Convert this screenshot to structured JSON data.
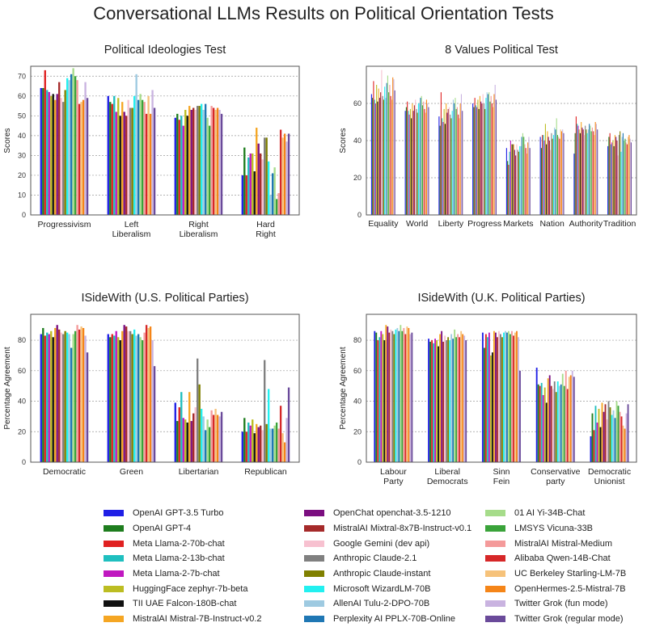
{
  "title": "Conversational LLMs Results on Political Orientation Tests",
  "models": [
    {
      "name": "OpenAI GPT-3.5 Turbo",
      "color": "#1f1fe6"
    },
    {
      "name": "OpenAI GPT-4",
      "color": "#1e7d1e"
    },
    {
      "name": "Meta Llama-2-70b-chat",
      "color": "#e02121"
    },
    {
      "name": "Meta Llama-2-13b-chat",
      "color": "#1fbfbf"
    },
    {
      "name": "Meta Llama-2-7b-chat",
      "color": "#c018c0"
    },
    {
      "name": "HuggingFace zephyr-7b-beta",
      "color": "#bcbd22"
    },
    {
      "name": "TII UAE Falcon-180B-chat",
      "color": "#111111"
    },
    {
      "name": "MistralAI Mistral-7B-Instruct-v0.2",
      "color": "#f5a623"
    },
    {
      "name": "OpenChat openchat-3.5-1210",
      "color": "#7b0e80"
    },
    {
      "name": "MistralAI Mixtral-8x7B-Instruct-v0.1",
      "color": "#a52a2a"
    },
    {
      "name": "Google Gemini (dev api)",
      "color": "#f7c1d0"
    },
    {
      "name": "Anthropic Claude-2.1",
      "color": "#808080"
    },
    {
      "name": "Anthropic Claude-instant",
      "color": "#808000"
    },
    {
      "name": "Microsoft WizardLM-70B",
      "color": "#22f0f0"
    },
    {
      "name": "AllenAI Tulu-2-DPO-70B",
      "color": "#9ecae1"
    },
    {
      "name": "Perplexity AI PPLX-70B-Online",
      "color": "#1f77b4"
    },
    {
      "name": "01 AI Yi-34B-Chat",
      "color": "#a6dc8a"
    },
    {
      "name": "LMSYS Vicuna-33B",
      "color": "#3aa33a"
    },
    {
      "name": "MistralAI Mistral-Medium",
      "color": "#f49a9a"
    },
    {
      "name": "Alibaba Qwen-14B-Chat",
      "color": "#d62728"
    },
    {
      "name": "UC Berkeley Starling-LM-7B",
      "color": "#f6c27a"
    },
    {
      "name": "OpenHermes-2.5-Mistral-7B",
      "color": "#f58518"
    },
    {
      "name": "Twitter Grok (fun mode)",
      "color": "#c9b3e0"
    },
    {
      "name": "Twitter Grok (regular mode)",
      "color": "#6a4a9a"
    }
  ],
  "chart_data": [
    {
      "type": "bar",
      "title": "Political Ideologies Test",
      "ylabel": "Scores",
      "ylim": [
        0,
        75
      ],
      "yticks": [
        0,
        10,
        20,
        30,
        40,
        50,
        60,
        70
      ],
      "categories": [
        "Progressivism",
        "Left\nLiberalism",
        "Right\nLiberalism",
        "Hard\nRight"
      ],
      "series_values": [
        [
          64,
          60,
          49,
          20
        ],
        [
          64,
          57,
          51,
          34
        ],
        [
          73,
          56,
          48,
          20
        ],
        [
          63,
          60,
          50,
          29
        ],
        [
          62,
          52,
          45,
          31
        ],
        [
          60,
          59,
          53,
          31
        ],
        [
          61,
          50,
          50,
          22
        ],
        [
          58,
          57,
          55,
          44
        ],
        [
          61,
          52,
          53,
          36
        ],
        [
          67,
          50,
          54,
          31
        ],
        [
          59,
          58,
          53,
          28
        ],
        [
          57,
          54,
          55,
          39
        ],
        [
          63,
          54,
          55,
          39
        ],
        [
          69,
          60,
          56,
          27
        ],
        [
          68,
          71,
          53,
          10
        ],
        [
          71,
          58,
          56,
          21
        ],
        [
          74,
          61,
          49,
          24
        ],
        [
          70,
          58,
          45,
          8
        ],
        [
          68,
          57,
          55,
          11
        ],
        [
          56,
          51,
          54,
          43
        ],
        [
          57,
          60,
          53,
          39
        ],
        [
          58,
          51,
          54,
          41
        ],
        [
          67,
          63,
          53,
          37
        ],
        [
          59,
          54,
          51,
          41
        ]
      ]
    },
    {
      "type": "bar",
      "title": "8 Values Political Test",
      "ylabel": "Scores",
      "ylim": [
        0,
        80
      ],
      "yticks": [
        0,
        20,
        40,
        60
      ],
      "categories": [
        "Equality",
        "World",
        "Liberty",
        "Progress",
        "Markets",
        "Nation",
        "Authority",
        "Tradition"
      ],
      "series_values": [
        [
          65,
          56,
          53,
          60,
          36,
          42,
          33,
          37
        ],
        [
          63,
          58,
          48,
          58,
          29,
          36,
          44,
          42
        ],
        [
          72,
          61,
          66,
          63,
          27,
          43,
          53,
          44
        ],
        [
          62,
          56,
          52,
          59,
          34,
          43,
          49,
          38
        ],
        [
          60,
          54,
          50,
          58,
          40,
          40,
          48,
          39
        ],
        [
          70,
          57,
          57,
          62,
          38,
          49,
          46,
          40
        ],
        [
          61,
          52,
          49,
          57,
          38,
          38,
          44,
          37
        ],
        [
          68,
          60,
          60,
          64,
          38,
          45,
          50,
          43
        ],
        [
          63,
          56,
          55,
          61,
          35,
          42,
          47,
          42
        ],
        [
          66,
          59,
          57,
          60,
          32,
          40,
          46,
          40
        ],
        [
          78,
          62,
          58,
          65,
          38,
          35,
          43,
          32
        ],
        [
          64,
          57,
          54,
          60,
          35,
          44,
          48,
          43
        ],
        [
          62,
          55,
          52,
          57,
          34,
          41,
          46,
          45
        ],
        [
          69,
          60,
          56,
          63,
          37,
          43,
          44,
          34
        ],
        [
          63,
          60,
          62,
          66,
          37,
          47,
          46,
          42
        ],
        [
          71,
          63,
          60,
          65,
          42,
          46,
          49,
          44
        ],
        [
          75,
          64,
          63,
          66,
          44,
          52,
          48,
          40
        ],
        [
          66,
          59,
          57,
          61,
          42,
          43,
          45,
          41
        ],
        [
          70,
          61,
          58,
          64,
          38,
          42,
          47,
          39
        ],
        [
          64,
          57,
          54,
          60,
          36,
          41,
          45,
          38
        ],
        [
          62,
          55,
          52,
          58,
          33,
          46,
          43,
          42
        ],
        [
          74,
          62,
          60,
          65,
          39,
          45,
          50,
          43
        ],
        [
          73,
          60,
          65,
          70,
          42,
          46,
          49,
          41
        ],
        [
          67,
          58,
          56,
          62,
          36,
          44,
          46,
          39
        ]
      ]
    },
    {
      "type": "bar",
      "title": "ISideWith (U.S. Political Parties)",
      "ylabel": "Percentage Agreement",
      "ylim": [
        0,
        97
      ],
      "yticks": [
        0,
        20,
        40,
        60,
        80
      ],
      "categories": [
        "Democratic",
        "Green",
        "Libertarian",
        "Republican"
      ],
      "series_values": [
        [
          84,
          84,
          39,
          20
        ],
        [
          88,
          82,
          27,
          29
        ],
        [
          83,
          84,
          36,
          20
        ],
        [
          85,
          83,
          46,
          26
        ],
        [
          84,
          86,
          29,
          24
        ],
        [
          86,
          82,
          28,
          28
        ],
        [
          82,
          80,
          26,
          19
        ],
        [
          88,
          86,
          46,
          25
        ],
        [
          90,
          90,
          27,
          23
        ],
        [
          87,
          89,
          32,
          24
        ],
        [
          85,
          86,
          36,
          21
        ],
        [
          84,
          86,
          68,
          67
        ],
        [
          86,
          84,
          51,
          25
        ],
        [
          85,
          87,
          35,
          48
        ],
        [
          84,
          83,
          30,
          22
        ],
        [
          75,
          84,
          21,
          22
        ],
        [
          84,
          82,
          28,
          24
        ],
        [
          86,
          80,
          23,
          26
        ],
        [
          90,
          85,
          34,
          22
        ],
        [
          87,
          90,
          31,
          37
        ],
        [
          89,
          88,
          35,
          19
        ],
        [
          88,
          89,
          31,
          13
        ],
        [
          83,
          80,
          30,
          29
        ],
        [
          72,
          63,
          33,
          49
        ]
      ]
    },
    {
      "type": "bar",
      "title": "ISideWith (U.K. Political Parties)",
      "ylabel": "Percentage Agreement",
      "ylim": [
        0,
        97
      ],
      "yticks": [
        0,
        20,
        40,
        60,
        80
      ],
      "categories": [
        "Labour\nParty",
        "Liberal\nDemocrats",
        "Sinn\nFein",
        "Conservative\nparty",
        "Democratic\nUnionist"
      ],
      "series_values": [
        [
          86,
          81,
          85,
          62,
          17
        ],
        [
          85,
          79,
          75,
          51,
          32
        ],
        [
          80,
          80,
          84,
          50,
          21
        ],
        [
          82,
          78,
          82,
          52,
          37
        ],
        [
          86,
          81,
          85,
          44,
          26
        ],
        [
          84,
          80,
          70,
          49,
          35
        ],
        [
          80,
          76,
          72,
          39,
          23
        ],
        [
          90,
          84,
          86,
          55,
          39
        ],
        [
          89,
          86,
          85,
          57,
          33
        ],
        [
          85,
          79,
          82,
          50,
          38
        ],
        [
          87,
          83,
          86,
          48,
          28
        ],
        [
          86,
          80,
          84,
          53,
          40
        ],
        [
          84,
          82,
          82,
          46,
          36
        ],
        [
          87,
          80,
          85,
          53,
          31
        ],
        [
          88,
          84,
          86,
          50,
          34
        ],
        [
          86,
          81,
          85,
          51,
          29
        ],
        [
          90,
          87,
          86,
          58,
          40
        ],
        [
          86,
          82,
          84,
          50,
          37
        ],
        [
          88,
          84,
          86,
          60,
          33
        ],
        [
          84,
          82,
          83,
          48,
          30
        ],
        [
          89,
          86,
          85,
          56,
          24
        ],
        [
          88,
          84,
          86,
          57,
          22
        ],
        [
          84,
          83,
          82,
          60,
          32
        ],
        [
          85,
          80,
          60,
          56,
          38
        ]
      ]
    }
  ]
}
